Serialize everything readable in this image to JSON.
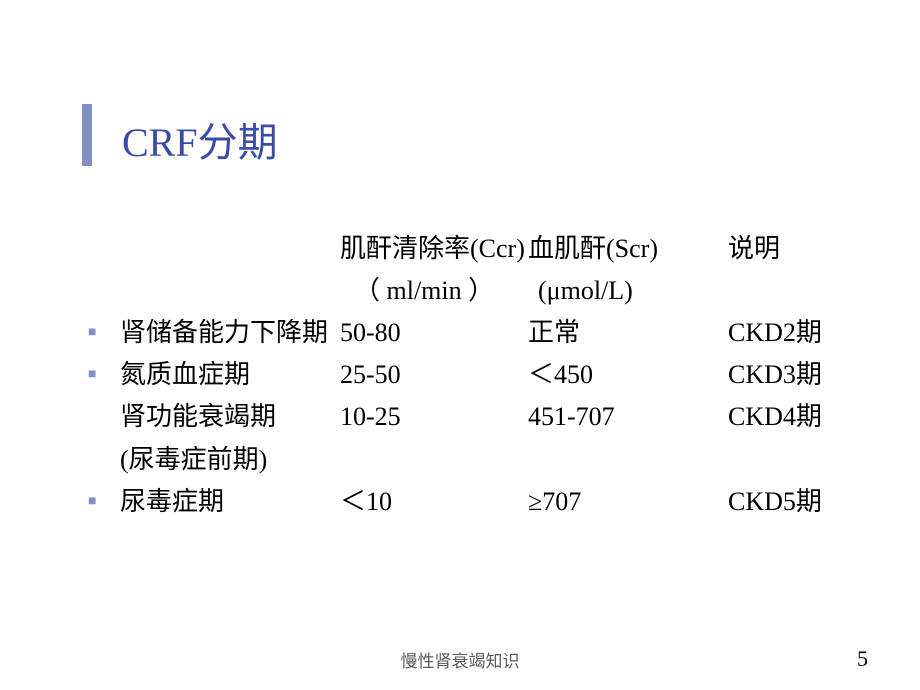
{
  "colors": {
    "title": "#3a4ba8",
    "bar": "#828fc5",
    "body": "#000000",
    "bullet": "#828fc5",
    "footer": "#5a5a5a",
    "pagenum": "#000000",
    "background": "#ffffff"
  },
  "title": "CRF分期",
  "header": {
    "col2_line1": "肌酐清除率(Ccr)",
    "col3_line1": "血肌酐(Scr)",
    "col4_line1": "说明",
    "col2_line2": "（ ml/min ）",
    "col3_line2": "(μmol/L)"
  },
  "rows": [
    {
      "bullet": true,
      "c1": "肾储备能力下降期",
      "c2": "50-80",
      "c3": "正常",
      "c4": "CKD2期"
    },
    {
      "bullet": true,
      "c1": "氮质血症期",
      "c2": "25-50",
      "c3": "＜450",
      "c4": "CKD3期"
    },
    {
      "bullet": false,
      "c1": "肾功能衰竭期",
      "c2": "10-25",
      "c3": "451-707",
      "c4": "CKD4期"
    },
    {
      "bullet": false,
      "c1": "(尿毒症前期)",
      "c2": "",
      "c3": "",
      "c4": ""
    },
    {
      "bullet": true,
      "c1": "尿毒症期",
      "c2": "＜10",
      "c3": "≥707",
      "c4": "CKD5期"
    }
  ],
  "footer": "慢性肾衰竭知识",
  "page_number": "5",
  "bullet_glyph": "■"
}
